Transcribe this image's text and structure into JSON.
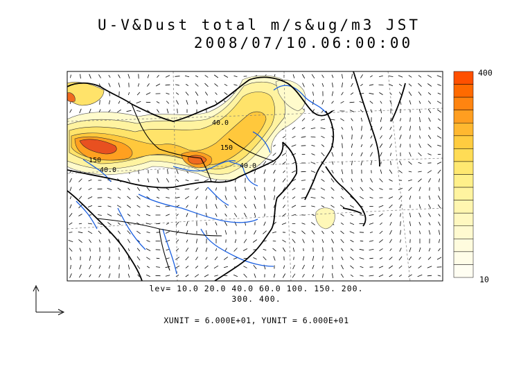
{
  "title": {
    "line1": "U-V&Dust total m/s&ug/m3 JST",
    "line2": "2008/07/10.06:00:00"
  },
  "contour_levels": {
    "line1": "lev= 10.0 20.0 40.0 60.0 100. 150. 200.",
    "line2": "300. 400."
  },
  "units_note": "XUNIT = 6.000E+01, YUNIT = 6.000E+01",
  "contour_labels": [
    "40.0",
    "150",
    "40.0",
    "150",
    "40.0"
  ],
  "colorbar": {
    "max_label": "400",
    "min_label": "10",
    "colors": [
      "#ff5000",
      "#ff6a00",
      "#ff8410",
      "#ff9e20",
      "#ffb830",
      "#ffcc40",
      "#ffdc55",
      "#ffe870",
      "#fff08a",
      "#fff4a0",
      "#fff6b0",
      "#fff8c0",
      "#fffad0",
      "#fffcde",
      "#fffde8",
      "#fffef2"
    ]
  },
  "colors": {
    "coast": "#000000",
    "river": "#1a5fe0",
    "dust_low": "#fff8b8",
    "dust_mid": "#ffd94a",
    "dust_high": "#ff8c1a",
    "dust_peak": "#e8401a"
  },
  "icons": [
    "reference-arrow-icon"
  ]
}
